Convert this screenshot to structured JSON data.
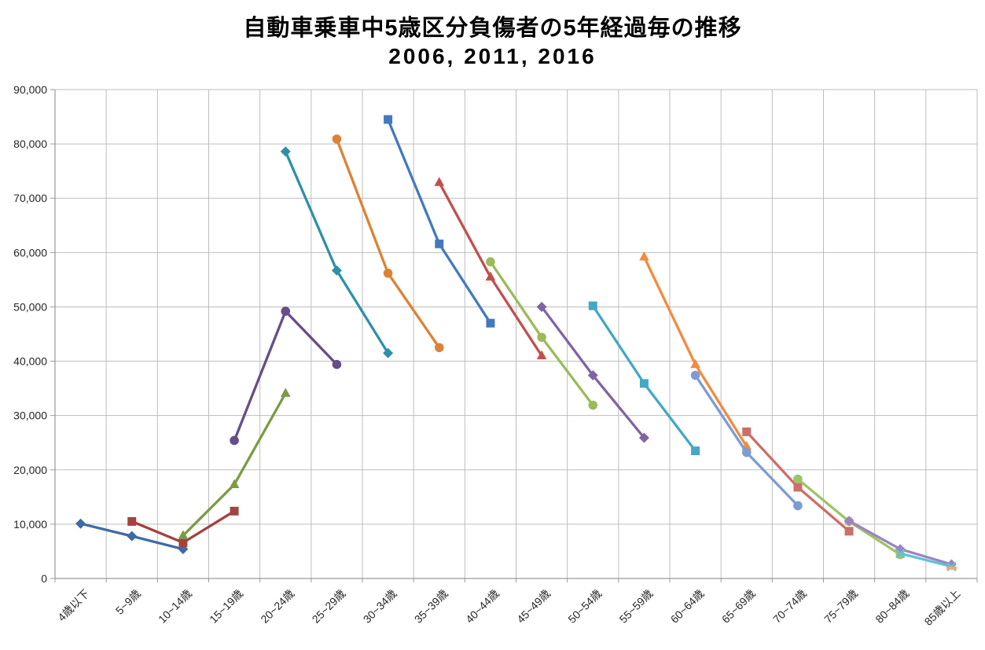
{
  "chart_data": {
    "type": "line",
    "title": "自動車乗車中5歳区分負傷者の5年経過毎の推移",
    "subtitle": "2006, 2011, 2016",
    "categories": [
      "4歳以下",
      "5~9歳",
      "10~14歳",
      "15~19歳",
      "20~24歳",
      "25~29歳",
      "30~34歳",
      "35~39歳",
      "40~44歳",
      "45~49歳",
      "50~54歳",
      "55~59歳",
      "60~64歳",
      "65~69歳",
      "70~74歳",
      "75~79歳",
      "80~84歳",
      "85歳以上"
    ],
    "xlabel": "",
    "ylabel": "",
    "ylim": [
      0,
      90000
    ],
    "ytick_step": 10000,
    "y_tick_labels": [
      "0",
      "10,000",
      "20,000",
      "30,000",
      "40,000",
      "50,000",
      "60,000",
      "70,000",
      "80,000",
      "90,000"
    ],
    "grid": true,
    "legend": "none",
    "series": [
      {
        "id": 1,
        "cohort_start": "4歳以下",
        "color": "#3E6BA5",
        "marker": "diamond",
        "points": [
          [
            0,
            10100
          ],
          [
            1,
            7800
          ],
          [
            2,
            5400
          ]
        ]
      },
      {
        "id": 2,
        "cohort_start": "5~9歳",
        "color": "#A4423F",
        "marker": "square",
        "points": [
          [
            1,
            10500
          ],
          [
            2,
            6600
          ],
          [
            3,
            12400
          ]
        ]
      },
      {
        "id": 3,
        "cohort_start": "10~14歳",
        "color": "#7A9C44",
        "marker": "triangle",
        "points": [
          [
            2,
            7900
          ],
          [
            3,
            17300
          ],
          [
            4,
            34100
          ]
        ]
      },
      {
        "id": 4,
        "cohort_start": "15~19歳",
        "color": "#664E89",
        "marker": "circle",
        "points": [
          [
            3,
            25400
          ],
          [
            4,
            49200
          ],
          [
            5,
            39400
          ]
        ]
      },
      {
        "id": 5,
        "cohort_start": "20~24歳",
        "color": "#2F90A9",
        "marker": "diamond",
        "points": [
          [
            4,
            78600
          ],
          [
            5,
            56700
          ],
          [
            6,
            41500
          ]
        ]
      },
      {
        "id": 6,
        "cohort_start": "25~29歳",
        "color": "#DC8234",
        "marker": "circle",
        "points": [
          [
            5,
            80900
          ],
          [
            6,
            56200
          ],
          [
            7,
            42500
          ]
        ]
      },
      {
        "id": 7,
        "cohort_start": "30~34歳",
        "color": "#4479BE",
        "marker": "square",
        "points": [
          [
            6,
            84500
          ],
          [
            7,
            61600
          ],
          [
            8,
            47000
          ]
        ]
      },
      {
        "id": 8,
        "cohort_start": "35~39歳",
        "color": "#C0504D",
        "marker": "triangle",
        "points": [
          [
            7,
            72900
          ],
          [
            8,
            55500
          ],
          [
            9,
            41000
          ]
        ]
      },
      {
        "id": 9,
        "cohort_start": "40~44歳",
        "color": "#9BBB59",
        "marker": "circle",
        "points": [
          [
            8,
            58300
          ],
          [
            9,
            44400
          ],
          [
            10,
            31900
          ]
        ]
      },
      {
        "id": 10,
        "cohort_start": "45~49歳",
        "color": "#8064A2",
        "marker": "diamond",
        "points": [
          [
            9,
            50000
          ],
          [
            10,
            37400
          ],
          [
            11,
            25900
          ]
        ]
      },
      {
        "id": 11,
        "cohort_start": "50~54歳",
        "color": "#44A8C4",
        "marker": "square",
        "points": [
          [
            10,
            50200
          ],
          [
            11,
            35900
          ],
          [
            12,
            23500
          ]
        ]
      },
      {
        "id": 12,
        "cohort_start": "55~59歳",
        "color": "#F28B3F",
        "marker": "triangle",
        "points": [
          [
            11,
            59200
          ],
          [
            12,
            39400
          ],
          [
            13,
            24300
          ]
        ]
      },
      {
        "id": 13,
        "cohort_start": "60~64歳",
        "color": "#7C9CD3",
        "marker": "circle",
        "points": [
          [
            12,
            37400
          ],
          [
            13,
            23200
          ],
          [
            14,
            13400
          ]
        ]
      },
      {
        "id": 14,
        "cohort_start": "65~69歳",
        "color": "#CC6E6A",
        "marker": "square",
        "points": [
          [
            13,
            27000
          ],
          [
            14,
            16800
          ],
          [
            15,
            8700
          ]
        ]
      },
      {
        "id": 15,
        "cohort_start": "70~74歳",
        "color": "#9FC368",
        "marker": "circle",
        "points": [
          [
            14,
            18300
          ],
          [
            15,
            10500
          ],
          [
            16,
            4400
          ]
        ]
      },
      {
        "id": 16,
        "cohort_start": "75~79歳",
        "color": "#9C85BD",
        "marker": "diamond",
        "points": [
          [
            15,
            10600
          ],
          [
            16,
            5400
          ],
          [
            17,
            2600
          ]
        ]
      },
      {
        "id": 17,
        "cohort_start": "80~84歳",
        "color": "#64BFD8",
        "marker": "x",
        "points": [
          [
            16,
            4600
          ],
          [
            17,
            2200
          ]
        ]
      },
      {
        "id": 18,
        "cohort_start": "85歳以上",
        "color": "#F9A764",
        "marker": "dash",
        "points": [
          [
            17,
            1900
          ]
        ]
      }
    ]
  },
  "style": {
    "gridline_color": "#BDBDBD",
    "axis_color": "#9A9A9A",
    "tick_label_color": "#262626",
    "background": "#FFFFFF"
  }
}
